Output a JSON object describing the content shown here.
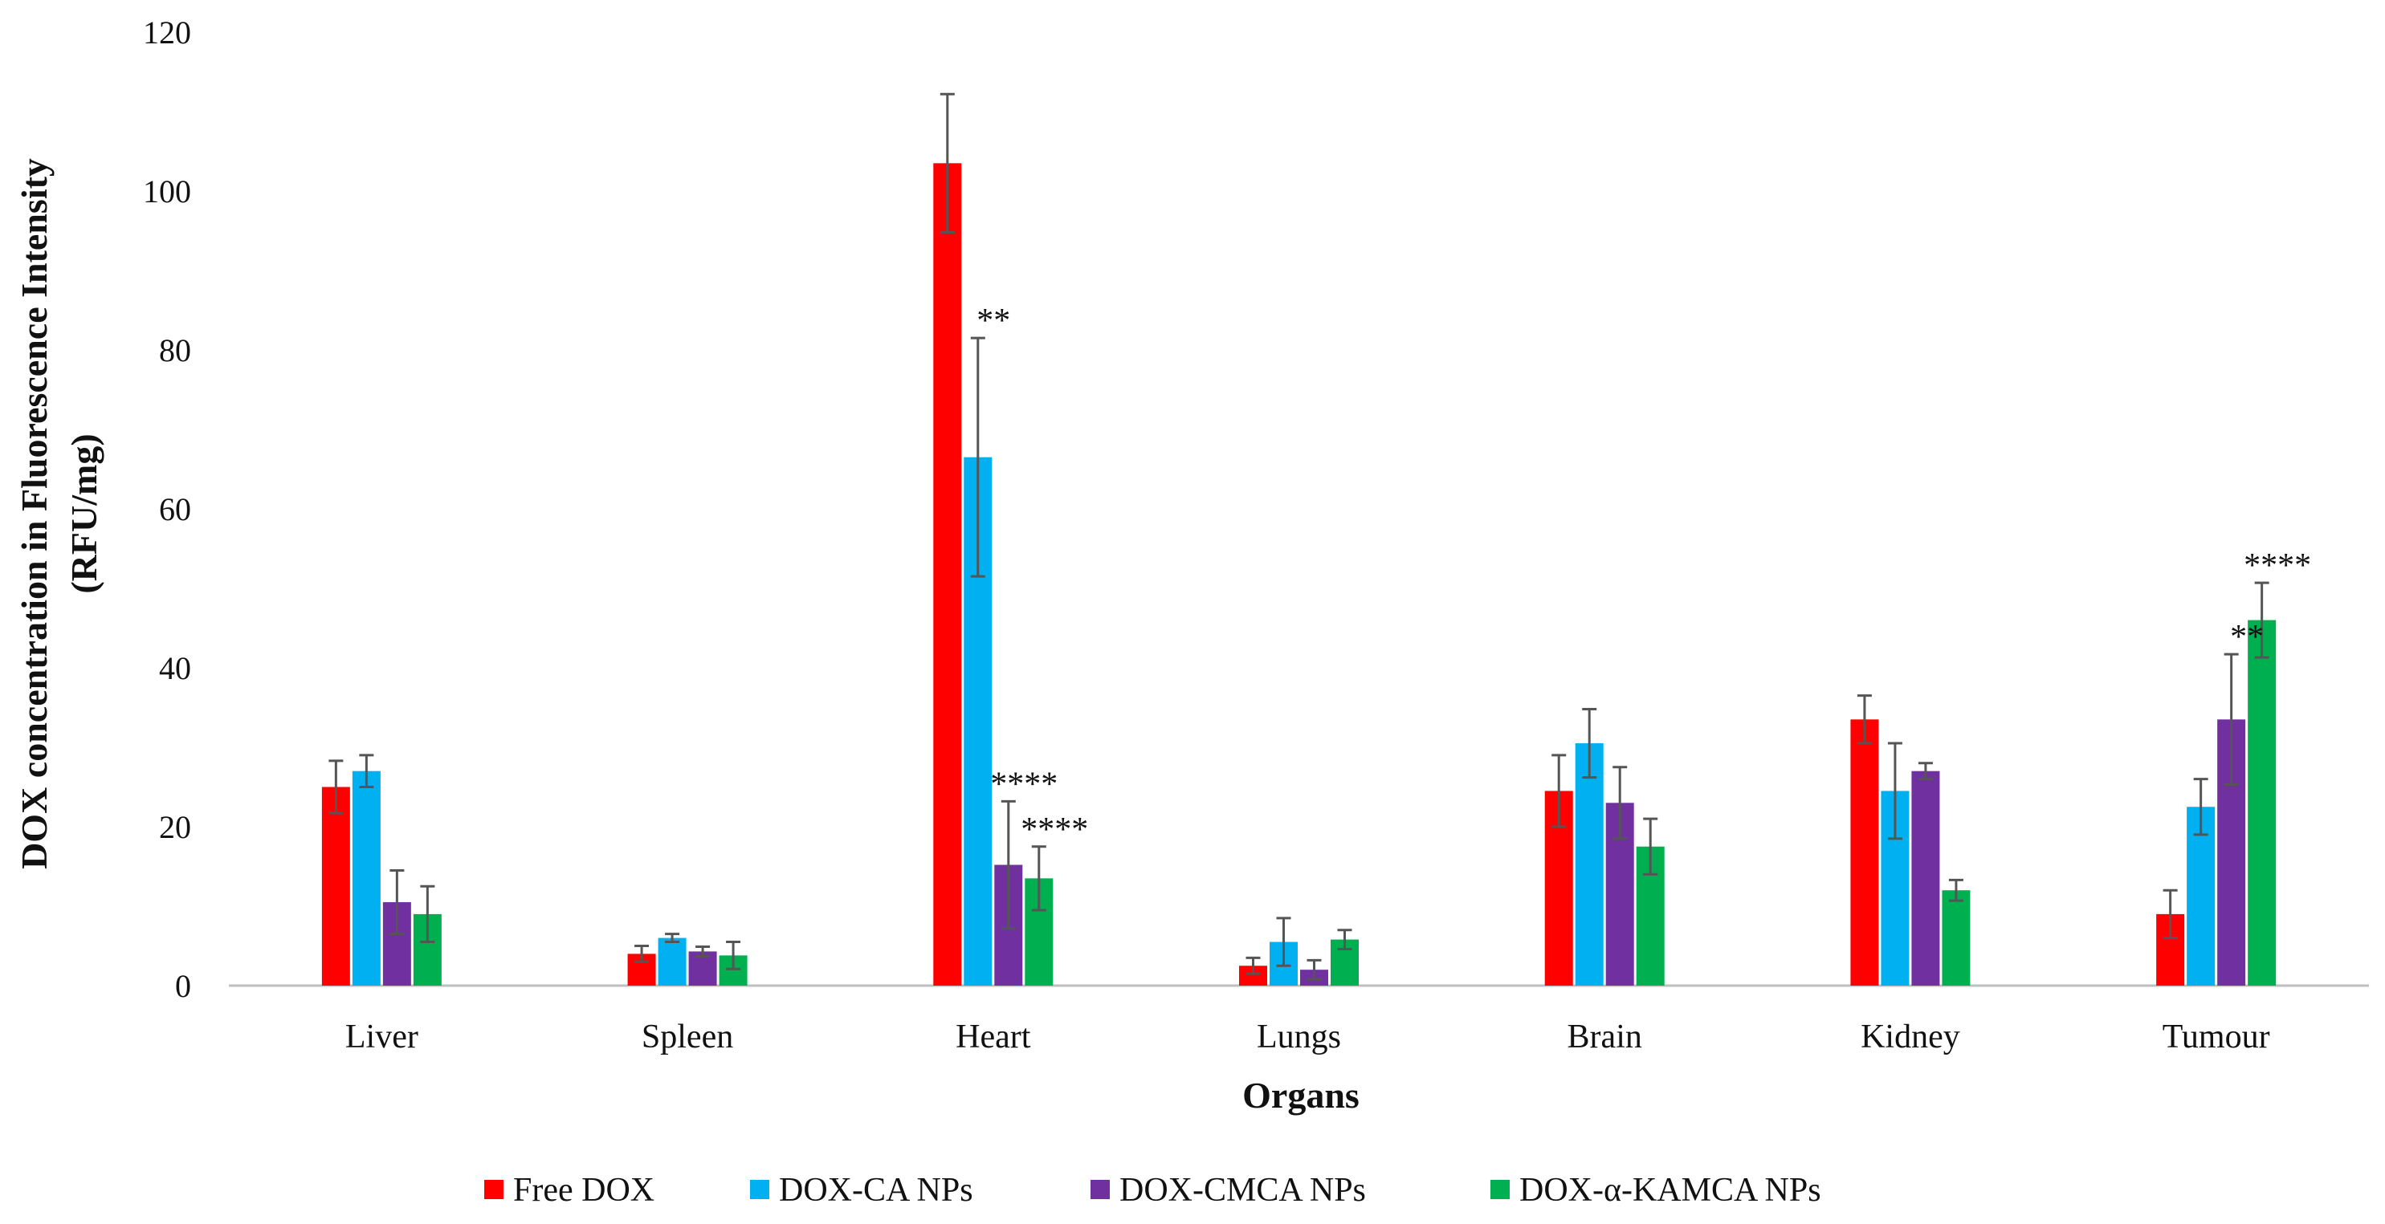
{
  "chart_data": {
    "type": "bar",
    "title": "",
    "xlabel": "Organs",
    "ylabel_line1": "DOX concentration in Fluorescence Intensity",
    "ylabel_line2": "(RFU/mg)",
    "ylim": [
      0,
      120
    ],
    "yticks": [
      0,
      20,
      40,
      60,
      80,
      100,
      120
    ],
    "grid": false,
    "legend_position": "bottom",
    "categories": [
      "Liver",
      "Spleen",
      "Heart",
      "Lungs",
      "Brain",
      "Kidney",
      "Tumour"
    ],
    "series": [
      {
        "name": "Free DOX",
        "color": "#ff0000",
        "values": [
          25,
          4,
          103.5,
          2.5,
          24.5,
          33.5,
          9
        ],
        "errors": [
          3.3,
          1.0,
          8.7,
          1.0,
          4.5,
          3.0,
          3.0
        ],
        "annotations": [
          "",
          "",
          "",
          "",
          "",
          "",
          ""
        ]
      },
      {
        "name": "DOX-CA NPs",
        "color": "#00b0f0",
        "values": [
          27,
          6,
          66.5,
          5.5,
          30.5,
          24.5,
          22.5
        ],
        "errors": [
          2.0,
          0.5,
          15.0,
          3.0,
          4.3,
          6.0,
          3.5
        ],
        "annotations": [
          "",
          "",
          "**",
          "",
          "",
          "",
          ""
        ]
      },
      {
        "name": "DOX-CMCA NPs",
        "color": "#7030a0",
        "values": [
          10.5,
          4.3,
          15.2,
          2,
          23,
          27,
          33.5
        ],
        "errors": [
          4.0,
          0.6,
          8.0,
          1.2,
          4.5,
          1.0,
          8.2
        ],
        "annotations": [
          "",
          "",
          "****",
          "",
          "",
          "",
          "**"
        ]
      },
      {
        "name": "DOX-α-KAMCA NPs",
        "color": "#00b050",
        "values": [
          9,
          3.8,
          13.5,
          5.8,
          17.5,
          12,
          46
        ],
        "errors": [
          3.5,
          1.7,
          4.0,
          1.2,
          3.5,
          1.3,
          4.7
        ],
        "annotations": [
          "",
          "",
          "****",
          "",
          "",
          "",
          "****"
        ]
      }
    ]
  }
}
